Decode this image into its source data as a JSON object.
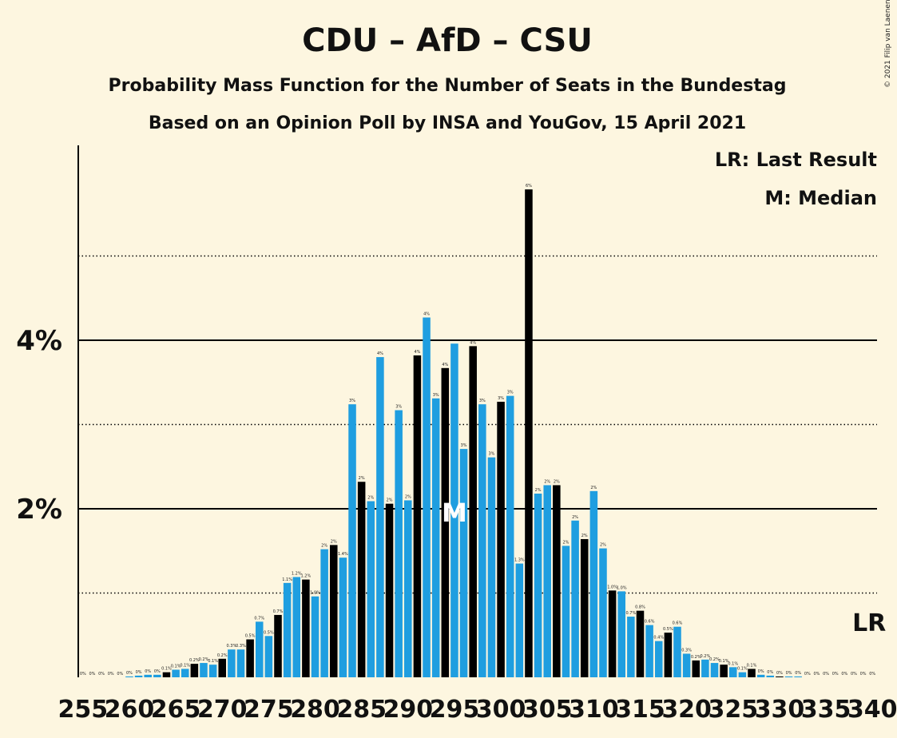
{
  "chart_data": {
    "type": "bar",
    "title": "CDU – AfD – CSU",
    "subtitle1": "Probability Mass Function for the Number of Seats in the Bundestag",
    "subtitle2": "Based on an Opinion Poll by INSA and YouGov, 15 April 2021",
    "copyright": "© 2021 Filip van Laenen",
    "legend": {
      "lr": "LR: Last Result",
      "median": "M: Median"
    },
    "lr_marker": "LR",
    "median_marker": "M",
    "median_seat": 295,
    "last_result_seat": 340,
    "xlim": [
      255,
      340
    ],
    "ylim": [
      0,
      6.3
    ],
    "y_ticks": [
      {
        "value": 2,
        "label": "2%"
      },
      {
        "value": 4,
        "label": "4%"
      }
    ],
    "y_gridlines_dotted": [
      1,
      3,
      5
    ],
    "x_tick_labels": [
      "255",
      "260",
      "265",
      "270",
      "275",
      "280",
      "285",
      "290",
      "295",
      "300",
      "305",
      "310",
      "315",
      "320",
      "325",
      "330",
      "335",
      "340"
    ],
    "colors": {
      "blue": "#1f9ee0",
      "black": "#000000",
      "background": "#fdf6e0"
    },
    "bars": [
      {
        "seat": 255,
        "value": 0.0,
        "label": "0%",
        "color": "blue"
      },
      {
        "seat": 256,
        "value": 0.0,
        "label": "0%",
        "color": "blue"
      },
      {
        "seat": 257,
        "value": 0.0,
        "label": "0%",
        "color": "blue"
      },
      {
        "seat": 258,
        "value": 0.0,
        "label": "0%",
        "color": "blue"
      },
      {
        "seat": 259,
        "value": 0.0,
        "label": "0%",
        "color": "blue"
      },
      {
        "seat": 260,
        "value": 0.01,
        "label": "0%",
        "color": "blue"
      },
      {
        "seat": 261,
        "value": 0.02,
        "label": "0%",
        "color": "blue"
      },
      {
        "seat": 262,
        "value": 0.03,
        "label": "0%",
        "color": "blue"
      },
      {
        "seat": 263,
        "value": 0.03,
        "label": "0%",
        "color": "blue"
      },
      {
        "seat": 264,
        "value": 0.06,
        "label": "0.1%",
        "color": "black"
      },
      {
        "seat": 265,
        "value": 0.09,
        "label": "0.1%",
        "color": "blue"
      },
      {
        "seat": 266,
        "value": 0.1,
        "label": "0.1%",
        "color": "blue"
      },
      {
        "seat": 267,
        "value": 0.16,
        "label": "0.2%",
        "color": "black"
      },
      {
        "seat": 268,
        "value": 0.17,
        "label": "0.2%",
        "color": "blue"
      },
      {
        "seat": 269,
        "value": 0.15,
        "label": "0.1%",
        "color": "blue"
      },
      {
        "seat": 270,
        "value": 0.22,
        "label": "0.2%",
        "color": "black"
      },
      {
        "seat": 271,
        "value": 0.33,
        "label": "0.3%",
        "color": "blue"
      },
      {
        "seat": 272,
        "value": 0.33,
        "label": "0.3%",
        "color": "blue"
      },
      {
        "seat": 273,
        "value": 0.45,
        "label": "0.5%",
        "color": "black"
      },
      {
        "seat": 274,
        "value": 0.66,
        "label": "0.7%",
        "color": "blue"
      },
      {
        "seat": 275,
        "value": 0.49,
        "label": "0.5%",
        "color": "blue"
      },
      {
        "seat": 276,
        "value": 0.74,
        "label": "0.7%",
        "color": "black"
      },
      {
        "seat": 277,
        "value": 1.12,
        "label": "1.1%",
        "color": "blue"
      },
      {
        "seat": 278,
        "value": 1.19,
        "label": "1.2%",
        "color": "blue"
      },
      {
        "seat": 279,
        "value": 1.16,
        "label": "1.2%",
        "color": "black"
      },
      {
        "seat": 280,
        "value": 0.96,
        "label": "1.0%",
        "color": "blue"
      },
      {
        "seat": 281,
        "value": 1.52,
        "label": "2%",
        "color": "blue"
      },
      {
        "seat": 282,
        "value": 1.57,
        "label": "2%",
        "color": "black"
      },
      {
        "seat": 283,
        "value": 1.42,
        "label": "1.4%",
        "color": "blue"
      },
      {
        "seat": 284,
        "value": 3.24,
        "label": "3%",
        "color": "blue"
      },
      {
        "seat": 285,
        "value": 2.32,
        "label": "2%",
        "color": "black"
      },
      {
        "seat": 286,
        "value": 2.09,
        "label": "2%",
        "color": "blue"
      },
      {
        "seat": 287,
        "value": 3.8,
        "label": "4%",
        "color": "blue"
      },
      {
        "seat": 288,
        "value": 2.06,
        "label": "2%",
        "color": "black"
      },
      {
        "seat": 289,
        "value": 3.17,
        "label": "3%",
        "color": "blue"
      },
      {
        "seat": 290,
        "value": 2.1,
        "label": "2%",
        "color": "blue"
      },
      {
        "seat": 291,
        "value": 3.82,
        "label": "4%",
        "color": "black"
      },
      {
        "seat": 292,
        "value": 4.27,
        "label": "4%",
        "color": "blue"
      },
      {
        "seat": 293,
        "value": 3.31,
        "label": "3%",
        "color": "blue"
      },
      {
        "seat": 294,
        "value": 3.67,
        "label": "4%",
        "color": "black"
      },
      {
        "seat": 295,
        "value": 3.96,
        "label": "",
        "color": "blue"
      },
      {
        "seat": 296,
        "value": 2.71,
        "label": "3%",
        "color": "blue"
      },
      {
        "seat": 297,
        "value": 3.93,
        "label": "4%",
        "color": "black"
      },
      {
        "seat": 298,
        "value": 3.24,
        "label": "3%",
        "color": "blue"
      },
      {
        "seat": 299,
        "value": 2.61,
        "label": "3%",
        "color": "blue"
      },
      {
        "seat": 300,
        "value": 3.27,
        "label": "3%",
        "color": "black"
      },
      {
        "seat": 301,
        "value": 3.34,
        "label": "3%",
        "color": "blue"
      },
      {
        "seat": 302,
        "value": 1.35,
        "label": "1.3%",
        "color": "blue"
      },
      {
        "seat": 303,
        "value": 5.79,
        "label": "6%",
        "color": "black"
      },
      {
        "seat": 304,
        "value": 2.18,
        "label": "2%",
        "color": "blue"
      },
      {
        "seat": 305,
        "value": 2.28,
        "label": "2%",
        "color": "blue"
      },
      {
        "seat": 306,
        "value": 2.28,
        "label": "2%",
        "color": "black"
      },
      {
        "seat": 307,
        "value": 1.56,
        "label": "2%",
        "color": "blue"
      },
      {
        "seat": 308,
        "value": 1.86,
        "label": "2%",
        "color": "blue"
      },
      {
        "seat": 309,
        "value": 1.64,
        "label": "2%",
        "color": "black"
      },
      {
        "seat": 310,
        "value": 2.21,
        "label": "2%",
        "color": "blue"
      },
      {
        "seat": 311,
        "value": 1.53,
        "label": "2%",
        "color": "blue"
      },
      {
        "seat": 312,
        "value": 1.03,
        "label": "1.0%",
        "color": "black"
      },
      {
        "seat": 313,
        "value": 1.02,
        "label": "1.0%",
        "color": "blue"
      },
      {
        "seat": 314,
        "value": 0.72,
        "label": "0.7%",
        "color": "blue"
      },
      {
        "seat": 315,
        "value": 0.79,
        "label": "0.8%",
        "color": "black"
      },
      {
        "seat": 316,
        "value": 0.62,
        "label": "0.6%",
        "color": "blue"
      },
      {
        "seat": 317,
        "value": 0.43,
        "label": "0.4%",
        "color": "blue"
      },
      {
        "seat": 318,
        "value": 0.53,
        "label": "0.5%",
        "color": "black"
      },
      {
        "seat": 319,
        "value": 0.6,
        "label": "0.6%",
        "color": "blue"
      },
      {
        "seat": 320,
        "value": 0.28,
        "label": "0.3%",
        "color": "blue"
      },
      {
        "seat": 321,
        "value": 0.2,
        "label": "0.2%",
        "color": "black"
      },
      {
        "seat": 322,
        "value": 0.21,
        "label": "0.2%",
        "color": "blue"
      },
      {
        "seat": 323,
        "value": 0.17,
        "label": "0.2%",
        "color": "blue"
      },
      {
        "seat": 324,
        "value": 0.15,
        "label": "0.1%",
        "color": "black"
      },
      {
        "seat": 325,
        "value": 0.12,
        "label": "0.1%",
        "color": "blue"
      },
      {
        "seat": 326,
        "value": 0.06,
        "label": "0.1%",
        "color": "blue"
      },
      {
        "seat": 327,
        "value": 0.1,
        "label": "0.1%",
        "color": "black"
      },
      {
        "seat": 328,
        "value": 0.03,
        "label": "0%",
        "color": "blue"
      },
      {
        "seat": 329,
        "value": 0.02,
        "label": "0%",
        "color": "blue"
      },
      {
        "seat": 330,
        "value": 0.01,
        "label": "0%",
        "color": "black"
      },
      {
        "seat": 331,
        "value": 0.01,
        "label": "0%",
        "color": "blue"
      },
      {
        "seat": 332,
        "value": 0.01,
        "label": "0%",
        "color": "blue"
      },
      {
        "seat": 333,
        "value": 0.0,
        "label": "0%",
        "color": "black"
      },
      {
        "seat": 334,
        "value": 0.0,
        "label": "0%",
        "color": "blue"
      },
      {
        "seat": 335,
        "value": 0.0,
        "label": "0%",
        "color": "blue"
      },
      {
        "seat": 336,
        "value": 0.0,
        "label": "0%",
        "color": "black"
      },
      {
        "seat": 337,
        "value": 0.0,
        "label": "0%",
        "color": "blue"
      },
      {
        "seat": 338,
        "value": 0.0,
        "label": "0%",
        "color": "blue"
      },
      {
        "seat": 339,
        "value": 0.0,
        "label": "0%",
        "color": "black"
      },
      {
        "seat": 340,
        "value": 0.0,
        "label": "0%",
        "color": "blue"
      }
    ]
  }
}
